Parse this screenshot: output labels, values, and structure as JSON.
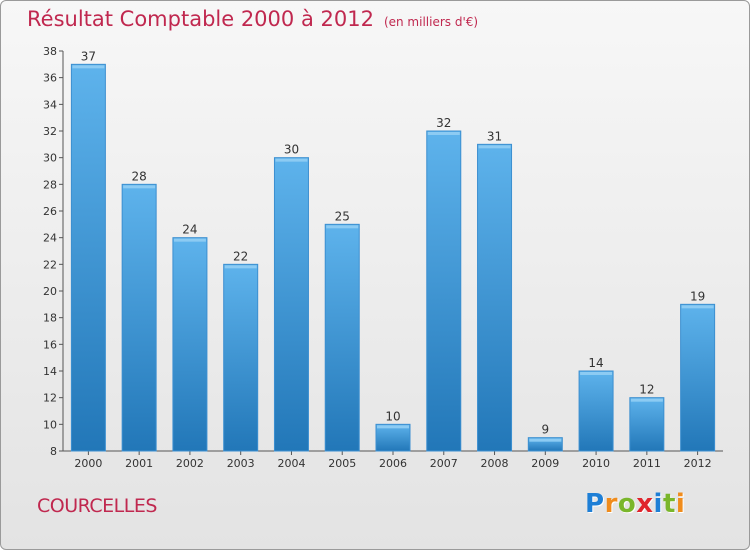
{
  "title": "Résultat Comptable 2000 à 2012",
  "subtitle": "(en milliers d'€)",
  "commune": "COURCELLES",
  "logo": {
    "text": "Proxiti",
    "letters": [
      {
        "ch": "P",
        "color": "#1e7fd6"
      },
      {
        "ch": "r",
        "color": "#f08c1c"
      },
      {
        "ch": "o",
        "color": "#7ab62b"
      },
      {
        "ch": "x",
        "color": "#e0242c"
      },
      {
        "ch": "i",
        "color": "#1e7fd6"
      },
      {
        "ch": "t",
        "color": "#7ab62b"
      },
      {
        "ch": "i",
        "color": "#f08c1c"
      }
    ]
  },
  "colors": {
    "title": "#c0284f",
    "bar_top": "#5eb3ec",
    "bar_bottom": "#2277b8",
    "bar_stroke": "#3c8fd0",
    "axis": "#555555"
  },
  "chart_data": {
    "type": "bar",
    "categories": [
      "2000",
      "2001",
      "2002",
      "2003",
      "2004",
      "2005",
      "2006",
      "2007",
      "2008",
      "2009",
      "2010",
      "2011",
      "2012"
    ],
    "values": [
      37,
      28,
      24,
      22,
      30,
      25,
      10,
      32,
      31,
      9,
      14,
      12,
      19
    ],
    "data_labels": [
      "37",
      "28",
      "24",
      "22",
      "30",
      "25",
      "10",
      "32",
      "31",
      "9",
      "14",
      "12",
      "19"
    ],
    "ylim": [
      8,
      38
    ],
    "yticks": [
      8,
      10,
      12,
      14,
      16,
      18,
      20,
      22,
      24,
      26,
      28,
      30,
      32,
      34,
      36,
      38
    ],
    "xlabel": "",
    "ylabel": "",
    "grid": false,
    "legend": "none"
  }
}
